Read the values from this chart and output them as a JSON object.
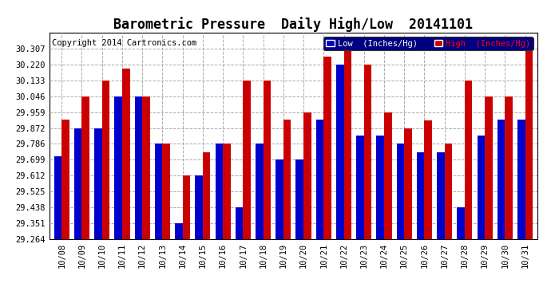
{
  "title": "Barometric Pressure  Daily High/Low  20141101",
  "copyright": "Copyright 2014 Cartronics.com",
  "legend_low": "Low  (Inches/Hg)",
  "legend_high": "High  (Inches/Hg)",
  "dates": [
    "10/08",
    "10/09",
    "10/10",
    "10/11",
    "10/12",
    "10/13",
    "10/14",
    "10/15",
    "10/16",
    "10/17",
    "10/18",
    "10/19",
    "10/20",
    "10/21",
    "10/22",
    "10/23",
    "10/24",
    "10/25",
    "10/26",
    "10/27",
    "10/28",
    "10/29",
    "10/30",
    "10/31"
  ],
  "low": [
    29.72,
    29.872,
    29.872,
    30.046,
    30.046,
    29.786,
    29.351,
    29.612,
    29.786,
    29.438,
    29.786,
    29.699,
    29.699,
    29.921,
    30.22,
    29.83,
    29.83,
    29.786,
    29.742,
    29.742,
    29.438,
    29.83,
    29.921,
    29.921
  ],
  "high": [
    29.921,
    30.046,
    30.133,
    30.2,
    30.046,
    29.786,
    29.612,
    29.742,
    29.786,
    30.133,
    30.133,
    29.921,
    29.959,
    30.265,
    30.307,
    30.22,
    29.959,
    29.872,
    29.916,
    29.786,
    30.133,
    30.046,
    30.046,
    30.307
  ],
  "low_color": "#0000cc",
  "high_color": "#cc0000",
  "background_color": "#ffffff",
  "plot_bg_color": "#ffffff",
  "grid_color": "#aaaaaa",
  "ylim_min": 29.264,
  "ylim_max": 30.394,
  "yticks": [
    29.264,
    29.351,
    29.438,
    29.525,
    29.612,
    29.699,
    29.786,
    29.872,
    29.959,
    30.046,
    30.133,
    30.22,
    30.307
  ],
  "title_fontsize": 12,
  "copyright_fontsize": 7.5,
  "legend_fontsize": 7.5,
  "tick_fontsize": 7.5
}
